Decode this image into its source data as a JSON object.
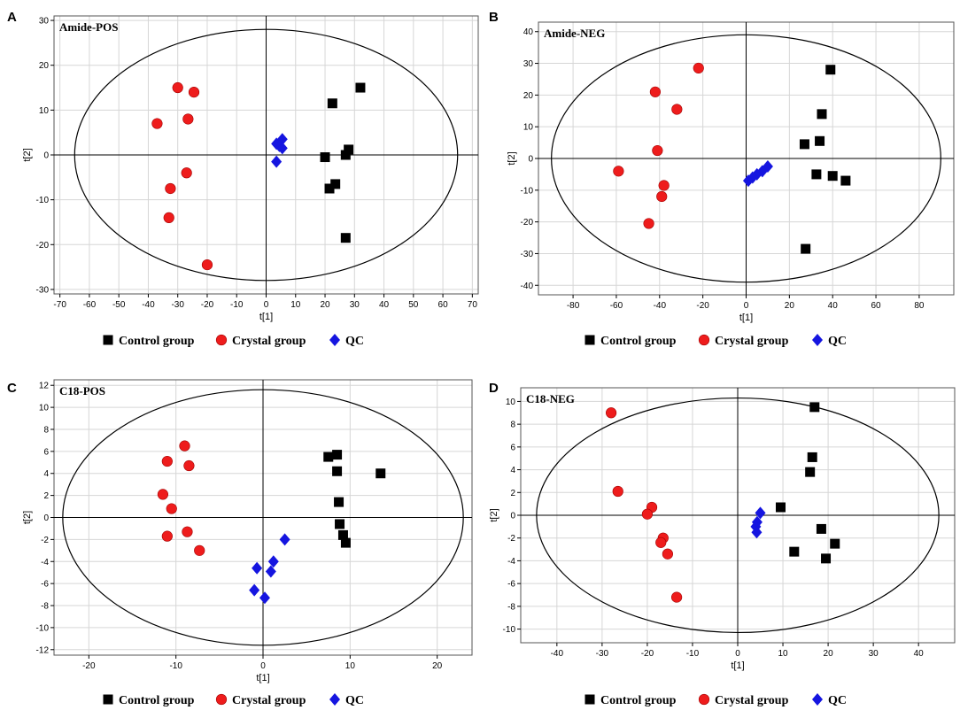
{
  "legend": [
    {
      "label": "Control group",
      "marker": "square",
      "color": "#000000"
    },
    {
      "label": "Crystal group",
      "marker": "circle",
      "color": "#ee1c1c"
    },
    {
      "label": "QC",
      "marker": "diamond",
      "color": "#1515e0"
    }
  ],
  "colors": {
    "control": "#000000",
    "crystal": "#ee1c1c",
    "qc": "#1515e0",
    "grid": "#d6d6d6"
  },
  "chart_data": [
    {
      "type": "scatter",
      "panel": "A",
      "title": "Amide-POS",
      "xlabel": "t[1]",
      "ylabel": "t[2]",
      "xlim": [
        -72,
        72
      ],
      "ylim": [
        -31,
        31
      ],
      "xticks": [
        -70,
        -60,
        -50,
        -40,
        -30,
        -20,
        -10,
        0,
        10,
        20,
        30,
        40,
        50,
        60,
        70
      ],
      "yticks": [
        -30,
        -20,
        -10,
        0,
        10,
        20,
        30
      ],
      "ellipse": {
        "rx": 65,
        "ry": 28
      },
      "series": [
        {
          "name": "Control group",
          "key": "control",
          "points": [
            [
              32,
              15
            ],
            [
              22.5,
              11.5
            ],
            [
              28,
              1.2
            ],
            [
              27,
              0
            ],
            [
              20,
              -0.5
            ],
            [
              23.5,
              -6.5
            ],
            [
              21.5,
              -7.5
            ],
            [
              27,
              -18.5
            ]
          ]
        },
        {
          "name": "Crystal group",
          "key": "crystal",
          "points": [
            [
              -30,
              15
            ],
            [
              -24.5,
              14
            ],
            [
              -26.5,
              8
            ],
            [
              -37,
              7
            ],
            [
              -27,
              -4
            ],
            [
              -32.5,
              -7.5
            ],
            [
              -33,
              -14
            ],
            [
              -20,
              -24.5
            ]
          ]
        },
        {
          "name": "QC",
          "key": "qc",
          "points": [
            [
              3.5,
              2.5
            ],
            [
              5.5,
              3.5
            ],
            [
              4.5,
              2
            ],
            [
              5.5,
              1.5
            ],
            [
              3.5,
              -1.5
            ]
          ]
        }
      ]
    },
    {
      "type": "scatter",
      "panel": "B",
      "title": "Amide-NEG",
      "xlabel": "t[1]",
      "ylabel": "t[2]",
      "xlim": [
        -96,
        96
      ],
      "ylim": [
        -43,
        43
      ],
      "xticks": [
        -80,
        -60,
        -40,
        -20,
        0,
        20,
        40,
        60,
        80
      ],
      "yticks": [
        -40,
        -30,
        -20,
        -10,
        0,
        10,
        20,
        30,
        40
      ],
      "ellipse": {
        "rx": 90,
        "ry": 39
      },
      "series": [
        {
          "name": "Control group",
          "key": "control",
          "points": [
            [
              39,
              28
            ],
            [
              35,
              14
            ],
            [
              34,
              5.5
            ],
            [
              27,
              4.5
            ],
            [
              32.5,
              -5
            ],
            [
              40,
              -5.5
            ],
            [
              46,
              -7
            ],
            [
              27.5,
              -28.5
            ]
          ]
        },
        {
          "name": "Crystal group",
          "key": "crystal",
          "points": [
            [
              -22,
              28.5
            ],
            [
              -42,
              21
            ],
            [
              -32,
              15.5
            ],
            [
              -41,
              2.5
            ],
            [
              -59,
              -4
            ],
            [
              -38,
              -8.5
            ],
            [
              -39,
              -12
            ],
            [
              -45,
              -20.5
            ]
          ]
        },
        {
          "name": "QC",
          "key": "qc",
          "points": [
            [
              10,
              -2.5
            ],
            [
              7.5,
              -4
            ],
            [
              5,
              -5
            ],
            [
              3,
              -6
            ],
            [
              1,
              -7
            ]
          ]
        }
      ]
    },
    {
      "type": "scatter",
      "panel": "C",
      "title": "C18-POS",
      "xlabel": "t[1]",
      "ylabel": "t[2]",
      "xlim": [
        -24,
        24
      ],
      "ylim": [
        -12.5,
        12.5
      ],
      "xticks": [
        -20,
        -10,
        0,
        10,
        20
      ],
      "yticks": [
        -12,
        -10,
        -8,
        -6,
        -4,
        -2,
        0,
        2,
        4,
        6,
        8,
        10,
        12
      ],
      "ellipse": {
        "rx": 23,
        "ry": 11.6
      },
      "series": [
        {
          "name": "Control group",
          "key": "control",
          "points": [
            [
              7.5,
              5.5
            ],
            [
              8.5,
              5.7
            ],
            [
              8.5,
              4.2
            ],
            [
              13.5,
              4
            ],
            [
              8.7,
              1.4
            ],
            [
              8.8,
              -0.6
            ],
            [
              9.2,
              -1.6
            ],
            [
              9.5,
              -2.3
            ]
          ]
        },
        {
          "name": "Crystal group",
          "key": "crystal",
          "points": [
            [
              -9,
              6.5
            ],
            [
              -11,
              5.1
            ],
            [
              -8.5,
              4.7
            ],
            [
              -11.5,
              2.1
            ],
            [
              -10.5,
              0.8
            ],
            [
              -8.7,
              -1.3
            ],
            [
              -11,
              -1.7
            ],
            [
              -7.3,
              -3
            ]
          ]
        },
        {
          "name": "QC",
          "key": "qc",
          "points": [
            [
              2.5,
              -2
            ],
            [
              1.2,
              -4
            ],
            [
              -0.7,
              -4.6
            ],
            [
              0.9,
              -4.9
            ],
            [
              -1,
              -6.6
            ],
            [
              0.2,
              -7.3
            ]
          ]
        }
      ]
    },
    {
      "type": "scatter",
      "panel": "D",
      "title": "C18-NEG",
      "xlabel": "t[1]",
      "ylabel": "t[2]",
      "xlim": [
        -48,
        48
      ],
      "ylim": [
        -11.2,
        11.2
      ],
      "xticks": [
        -40,
        -30,
        -20,
        -10,
        0,
        10,
        20,
        30,
        40
      ],
      "yticks": [
        -10,
        -8,
        -6,
        -4,
        -2,
        0,
        2,
        4,
        6,
        8,
        10
      ],
      "ellipse": {
        "rx": 44.5,
        "ry": 10.3
      },
      "series": [
        {
          "name": "Control group",
          "key": "control",
          "points": [
            [
              17,
              9.5
            ],
            [
              16.5,
              5.1
            ],
            [
              16,
              3.8
            ],
            [
              9.5,
              0.7
            ],
            [
              18.5,
              -1.2
            ],
            [
              21.5,
              -2.5
            ],
            [
              12.5,
              -3.2
            ],
            [
              19.5,
              -3.8
            ]
          ]
        },
        {
          "name": "Crystal group",
          "key": "crystal",
          "points": [
            [
              -28,
              9
            ],
            [
              -26.5,
              2.1
            ],
            [
              -19,
              0.7
            ],
            [
              -20,
              0.1
            ],
            [
              -16.5,
              -2
            ],
            [
              -17,
              -2.4
            ],
            [
              -15.5,
              -3.4
            ],
            [
              -13.5,
              -7.2
            ]
          ]
        },
        {
          "name": "QC",
          "key": "qc",
          "points": [
            [
              5,
              0.2
            ],
            [
              4.3,
              -0.6
            ],
            [
              4,
              -1
            ],
            [
              4.2,
              -1.5
            ]
          ]
        }
      ]
    }
  ]
}
